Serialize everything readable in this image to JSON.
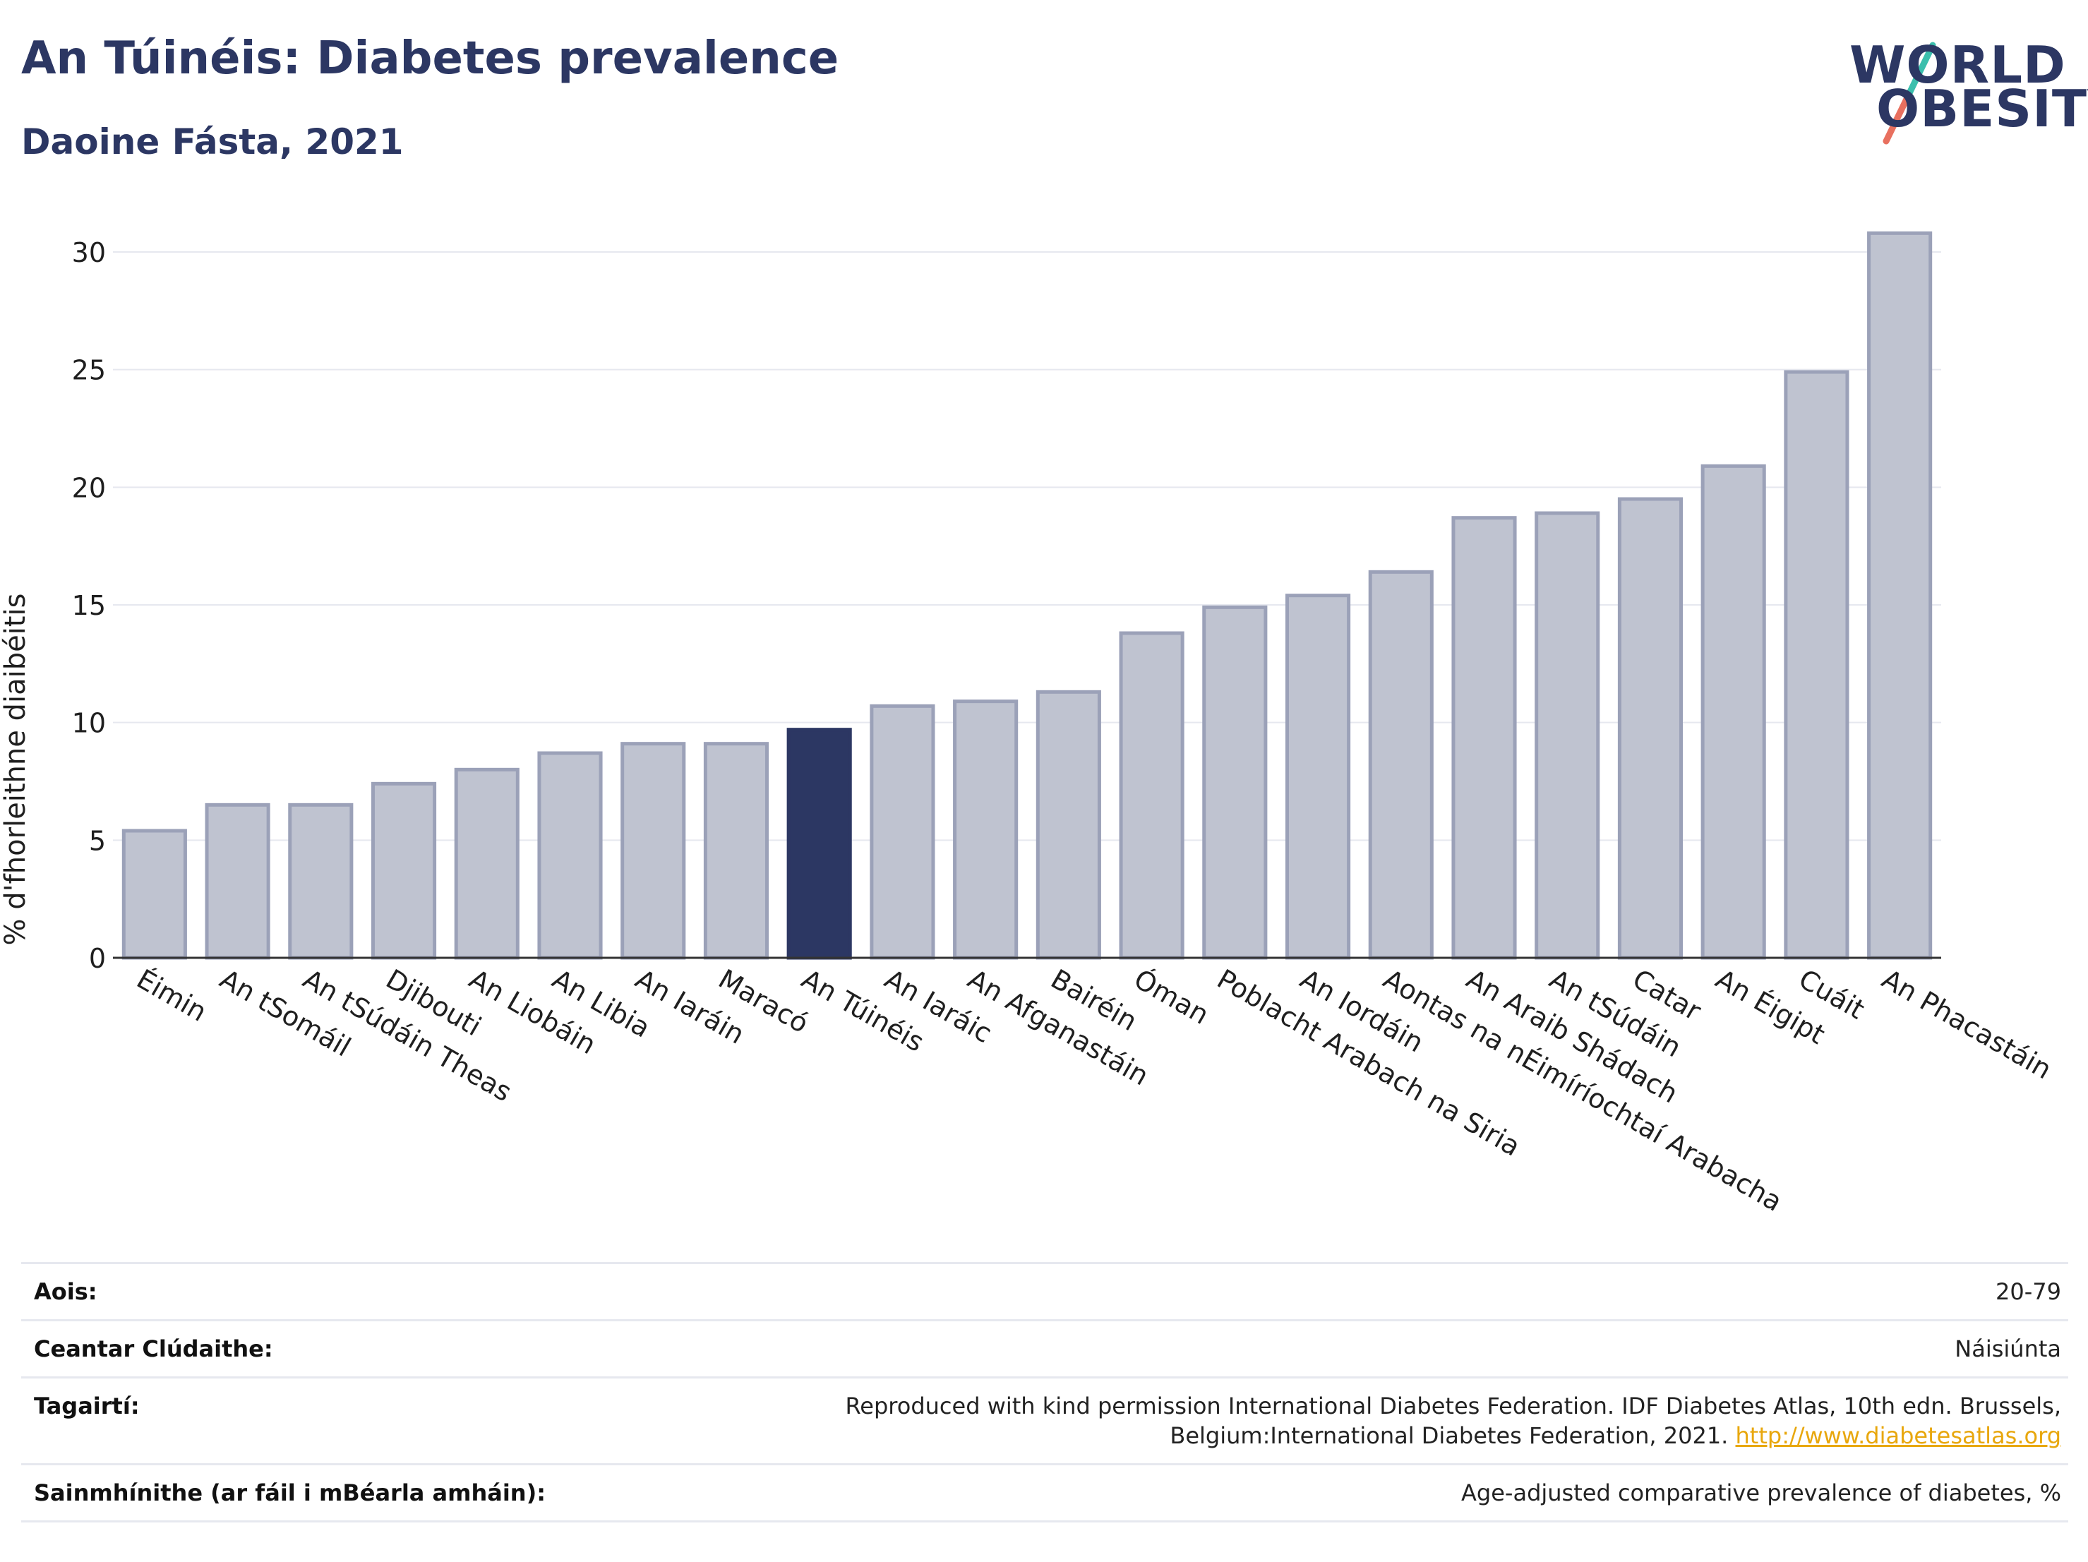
{
  "header": {
    "title": "An Túinéis: Diabetes prevalence",
    "subtitle": "Daoine Fásta, 2021"
  },
  "logo": {
    "line1": "WORLD",
    "line2": "OBESITY",
    "accent_colors": [
      "#3bbfad",
      "#e8705f"
    ]
  },
  "chart_data": {
    "type": "bar",
    "ylabel": "% d'fhorleithne diaibéitis",
    "ylim": [
      0,
      32
    ],
    "yticks": [
      0,
      5,
      10,
      15,
      20,
      25,
      30
    ],
    "grid": true,
    "categories": [
      "Éimin",
      "An tSomáil",
      "An tSúdáin Theas",
      "Djibouti",
      "An Liobáin",
      "An Libia",
      "An Iaráin",
      "Maracó",
      "An Túinéis",
      "An Iaráic",
      "An Afganastáin",
      "Bairéin",
      "Óman",
      "Poblacht Arabach na Siria",
      "An Iordáin",
      "Aontas na nÉimíríochtaí Arabacha",
      "An Araib Shádach",
      "An tSúdáin",
      "Catar",
      "An Éigipt",
      "Cuáit",
      "An Phacastáin"
    ],
    "values": [
      5.4,
      6.5,
      6.5,
      7.4,
      8.0,
      8.7,
      9.1,
      9.1,
      9.7,
      10.7,
      10.9,
      11.3,
      13.8,
      14.9,
      15.4,
      16.4,
      18.7,
      18.9,
      19.5,
      20.9,
      24.9,
      30.8
    ],
    "highlight": "An Túinéis",
    "colors": {
      "bar": "#bfc3d0",
      "bar_edge": "#9ba1b8",
      "highlight": "#2c3763",
      "axis": "#333333",
      "grid": "#e6e8ef"
    }
  },
  "meta": {
    "age_label": "Aois:",
    "age_value": "20-79",
    "area_label": "Ceantar Clúdaithe:",
    "area_value": "Náisiúnta",
    "ref_label": "Tagairtí:",
    "ref_text": "Reproduced with kind permission International Diabetes Federation.  IDF Diabetes Atlas, 10th edn. Brussels, Belgium:International Diabetes Federation, 2021. ",
    "ref_link": "http://www.diabetesatlas.org",
    "def_label": "Sainmhínithe (ar fáil i mBéarla amháin):",
    "def_value": "Age-adjusted comparative prevalence of diabetes, %"
  }
}
